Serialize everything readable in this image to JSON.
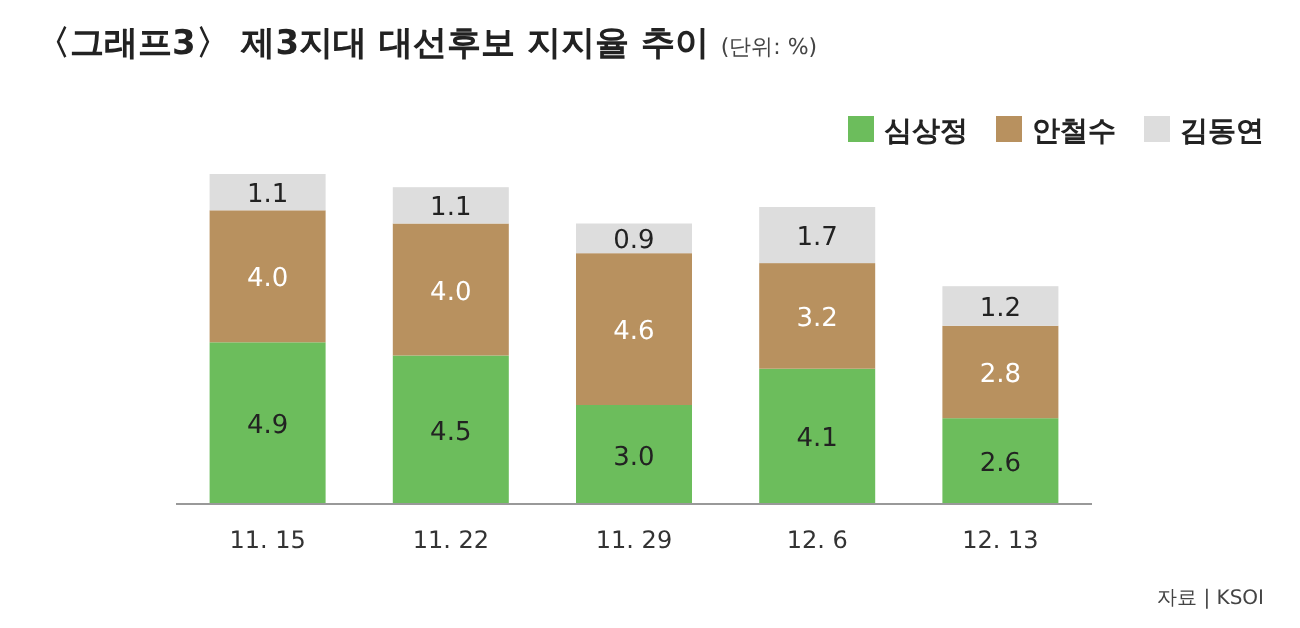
{
  "chart_data": {
    "type": "bar",
    "stacked": true,
    "legend": "top right",
    "title": "〈그래프3〉 제3지대 대선후보 지지율 추이",
    "subtitle": "(단위: %)",
    "categories": [
      "11. 15",
      "11. 22",
      "11. 29",
      "12. 6",
      "12. 13"
    ],
    "series": [
      {
        "name": "심상정",
        "color": "#6cbd5c",
        "values": [
          4.9,
          4.5,
          3.0,
          4.1,
          2.6
        ],
        "value_labels": [
          "4.9",
          "4.5",
          "3.0",
          "4.1",
          "2.6"
        ]
      },
      {
        "name": "안철수",
        "color": "#b8915f",
        "values": [
          4.0,
          4.0,
          4.6,
          3.2,
          2.8
        ],
        "value_labels": [
          "4.0",
          "4.0",
          "4.6",
          "3.2",
          "2.8"
        ]
      },
      {
        "name": "김동연",
        "color": "#dddddd",
        "values": [
          1.1,
          1.1,
          0.9,
          1.7,
          1.2
        ],
        "value_labels": [
          "1.1",
          "1.1",
          "0.9",
          "1.7",
          "1.2"
        ]
      }
    ],
    "annotations": [
      "자료 | KSOI"
    ]
  }
}
